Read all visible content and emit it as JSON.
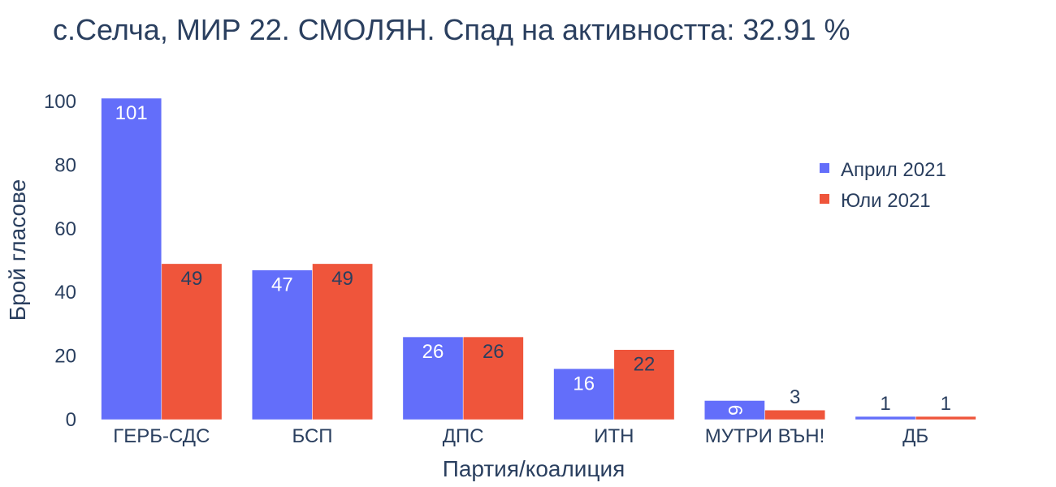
{
  "chart_data": {
    "type": "bar",
    "title": "с.Селча, МИР 22. СМОЛЯН. Спад на активността: 32.91 %",
    "xlabel": "Партия/коалиция",
    "ylabel": "Брой гласове",
    "categories": [
      "ГЕРБ-СДС",
      "БСП",
      "ДПС",
      "ИТН",
      "МУТРИ ВЪН!",
      "ДБ"
    ],
    "series": [
      {
        "name": "Април 2021",
        "values": [
          101,
          47,
          26,
          16,
          6,
          1
        ],
        "color": "#636efa"
      },
      {
        "name": "Юли 2021",
        "values": [
          49,
          49,
          26,
          22,
          3,
          1
        ],
        "color": "#ef553b"
      }
    ],
    "ylim": [
      0,
      101
    ],
    "yticks": [
      0,
      20,
      40,
      60,
      80,
      100
    ],
    "grid": false,
    "legend_position": "top-right"
  }
}
